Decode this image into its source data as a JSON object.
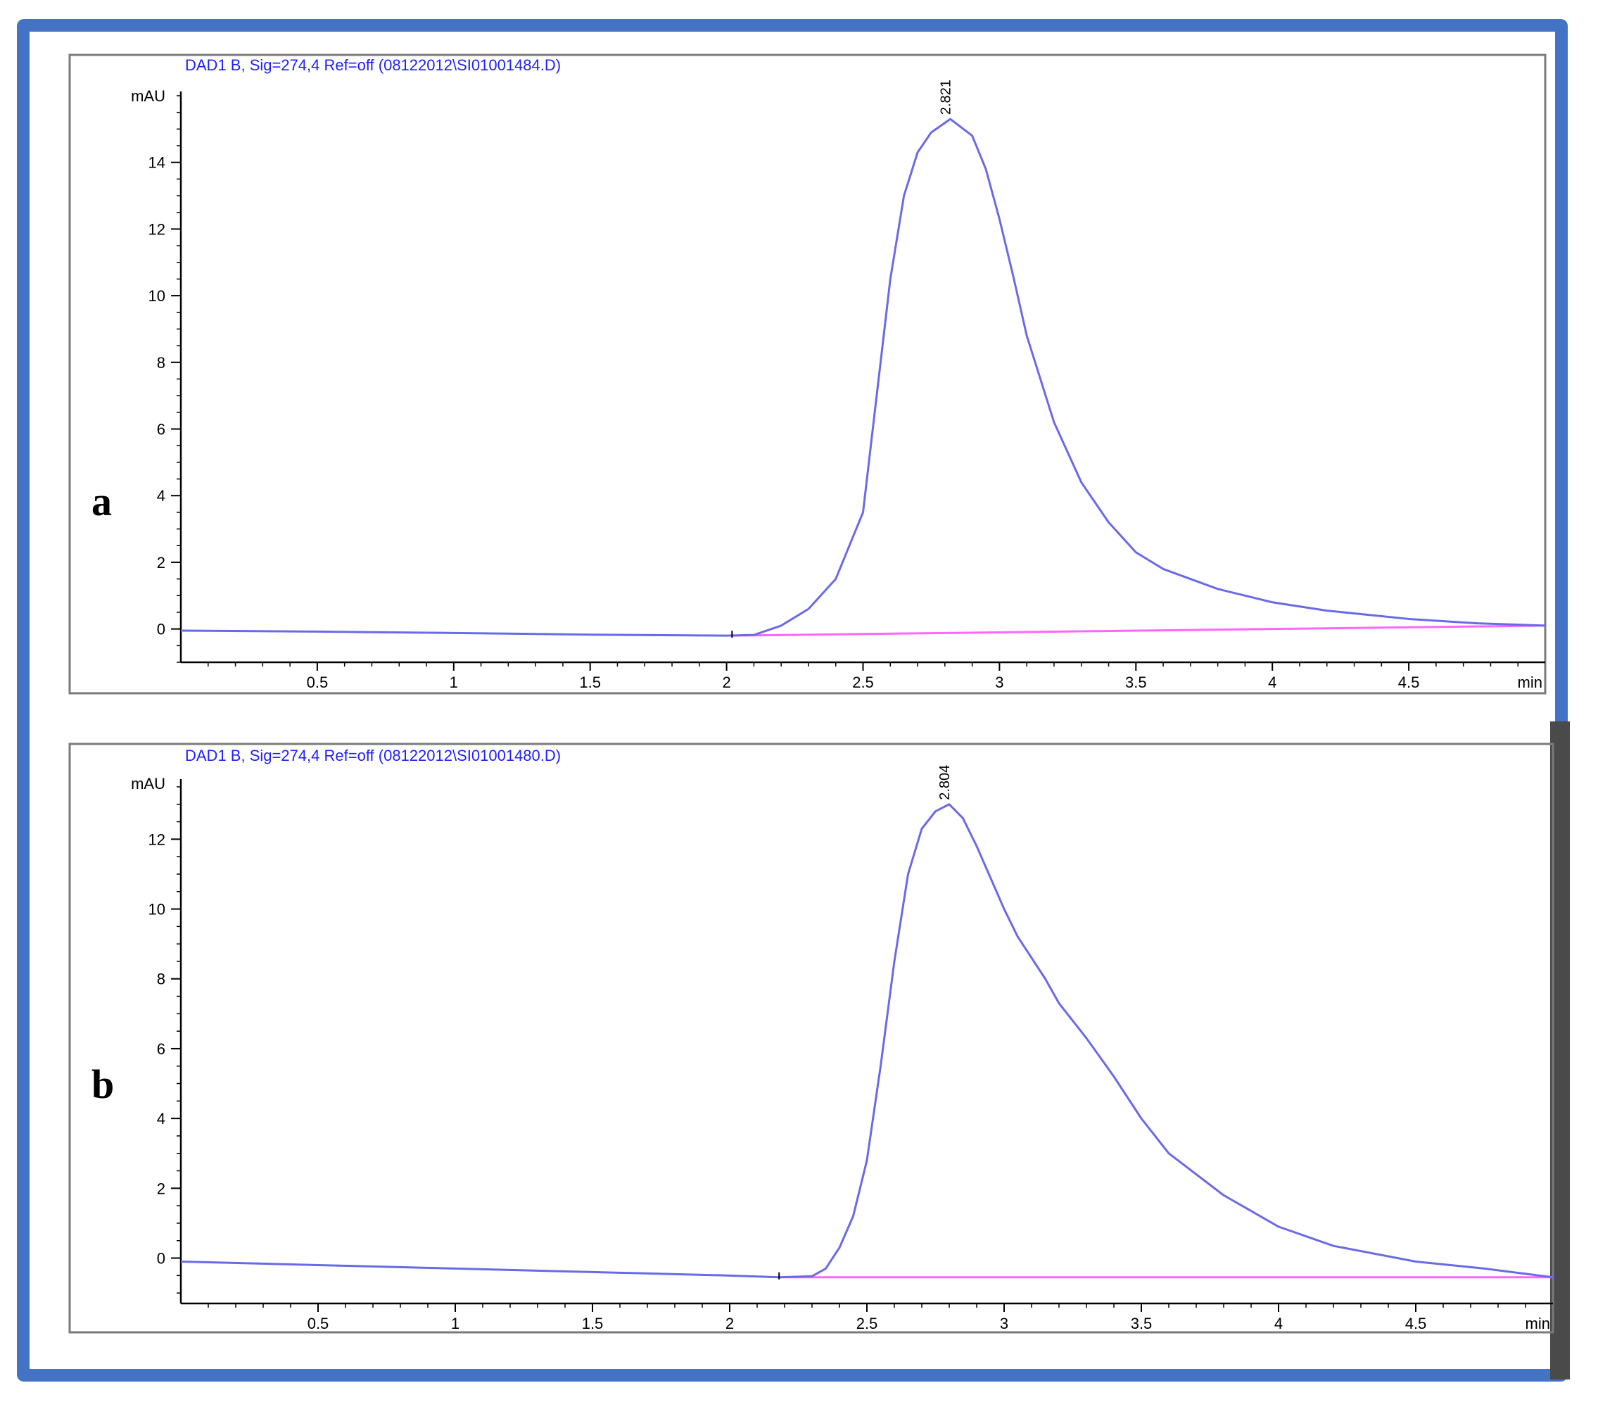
{
  "colors": {
    "frame": "#4472c4",
    "signal": "#6a6ae8",
    "baseline": "#ff66ff",
    "header": "#2020ff",
    "axis": "#000000",
    "side_bar": "#4a4a4a"
  },
  "chart_data": [
    {
      "type": "line",
      "panel_label": "a",
      "title": "DAD1 B, Sig=274,4 Ref=off (08122012\\SI01001484.D)",
      "ylabel": "mAU",
      "xlabel": "min",
      "xlim": [
        0,
        5
      ],
      "ylim": [
        -1,
        16
      ],
      "xticks": [
        0.5,
        1,
        1.5,
        2,
        2.5,
        3,
        3.5,
        4,
        4.5
      ],
      "xtick_labels": [
        "0.5",
        "1",
        "1.5",
        "2",
        "2.5",
        "3",
        "3.5",
        "4",
        "4.5"
      ],
      "yticks": [
        0,
        2,
        4,
        6,
        8,
        10,
        12,
        14
      ],
      "ytick_labels": [
        "0",
        "2",
        "4",
        "6",
        "8",
        "10",
        "12",
        "14"
      ],
      "peak_label": "2.821",
      "peak_x": 2.82,
      "integration_start_x": 2.02,
      "series": [
        {
          "x": [
            0,
            0.5,
            1,
            1.5,
            2,
            2.1,
            2.2,
            2.3,
            2.4,
            2.5,
            2.55,
            2.6,
            2.65,
            2.7,
            2.75,
            2.82,
            2.9,
            2.95,
            3.0,
            3.05,
            3.1,
            3.2,
            3.3,
            3.4,
            3.5,
            3.6,
            3.8,
            4.0,
            4.2,
            4.5,
            4.75,
            5.0
          ],
          "y": [
            -0.05,
            -0.08,
            -0.12,
            -0.17,
            -0.2,
            -0.18,
            0.1,
            0.6,
            1.5,
            3.5,
            7.0,
            10.5,
            13.0,
            14.3,
            14.9,
            15.3,
            14.8,
            13.8,
            12.3,
            10.6,
            8.8,
            6.2,
            4.4,
            3.2,
            2.3,
            1.8,
            1.2,
            0.8,
            0.55,
            0.3,
            0.17,
            0.1
          ]
        },
        {
          "x": [
            2.02,
            5.0
          ],
          "y": [
            -0.2,
            0.1
          ]
        }
      ]
    },
    {
      "type": "line",
      "panel_label": "b",
      "title": "DAD1 B, Sig=274,4 Ref=off (08122012\\SI01001480.D)",
      "ylabel": "mAU",
      "xlabel": "min",
      "xlim": [
        0,
        5
      ],
      "ylim": [
        -1.3,
        13.6
      ],
      "xticks": [
        0.5,
        1,
        1.5,
        2,
        2.5,
        3,
        3.5,
        4,
        4.5
      ],
      "xtick_labels": [
        "0.5",
        "1",
        "1.5",
        "2",
        "2.5",
        "3",
        "3.5",
        "4",
        "4.5"
      ],
      "yticks": [
        0,
        2,
        4,
        6,
        8,
        10,
        12
      ],
      "ytick_labels": [
        "0",
        "2",
        "4",
        "6",
        "8",
        "10",
        "12"
      ],
      "peak_label": "2.804",
      "peak_x": 2.8,
      "integration_start_x": 2.18,
      "series": [
        {
          "x": [
            0,
            0.5,
            1,
            1.5,
            2,
            2.18,
            2.3,
            2.35,
            2.4,
            2.45,
            2.5,
            2.55,
            2.6,
            2.65,
            2.7,
            2.75,
            2.8,
            2.85,
            2.9,
            2.95,
            3.0,
            3.05,
            3.1,
            3.15,
            3.2,
            3.3,
            3.4,
            3.5,
            3.6,
            3.8,
            4.0,
            4.2,
            4.5,
            4.75,
            5.0
          ],
          "y": [
            -0.1,
            -0.2,
            -0.3,
            -0.4,
            -0.5,
            -0.55,
            -0.52,
            -0.3,
            0.3,
            1.2,
            2.8,
            5.5,
            8.5,
            11.0,
            12.3,
            12.8,
            13.0,
            12.6,
            11.8,
            10.9,
            10.0,
            9.2,
            8.6,
            8.0,
            7.3,
            6.3,
            5.2,
            4.0,
            3.0,
            1.8,
            0.9,
            0.35,
            -0.1,
            -0.3,
            -0.55
          ]
        },
        {
          "x": [
            2.18,
            5.0
          ],
          "y": [
            -0.55,
            -0.55
          ]
        }
      ]
    }
  ]
}
